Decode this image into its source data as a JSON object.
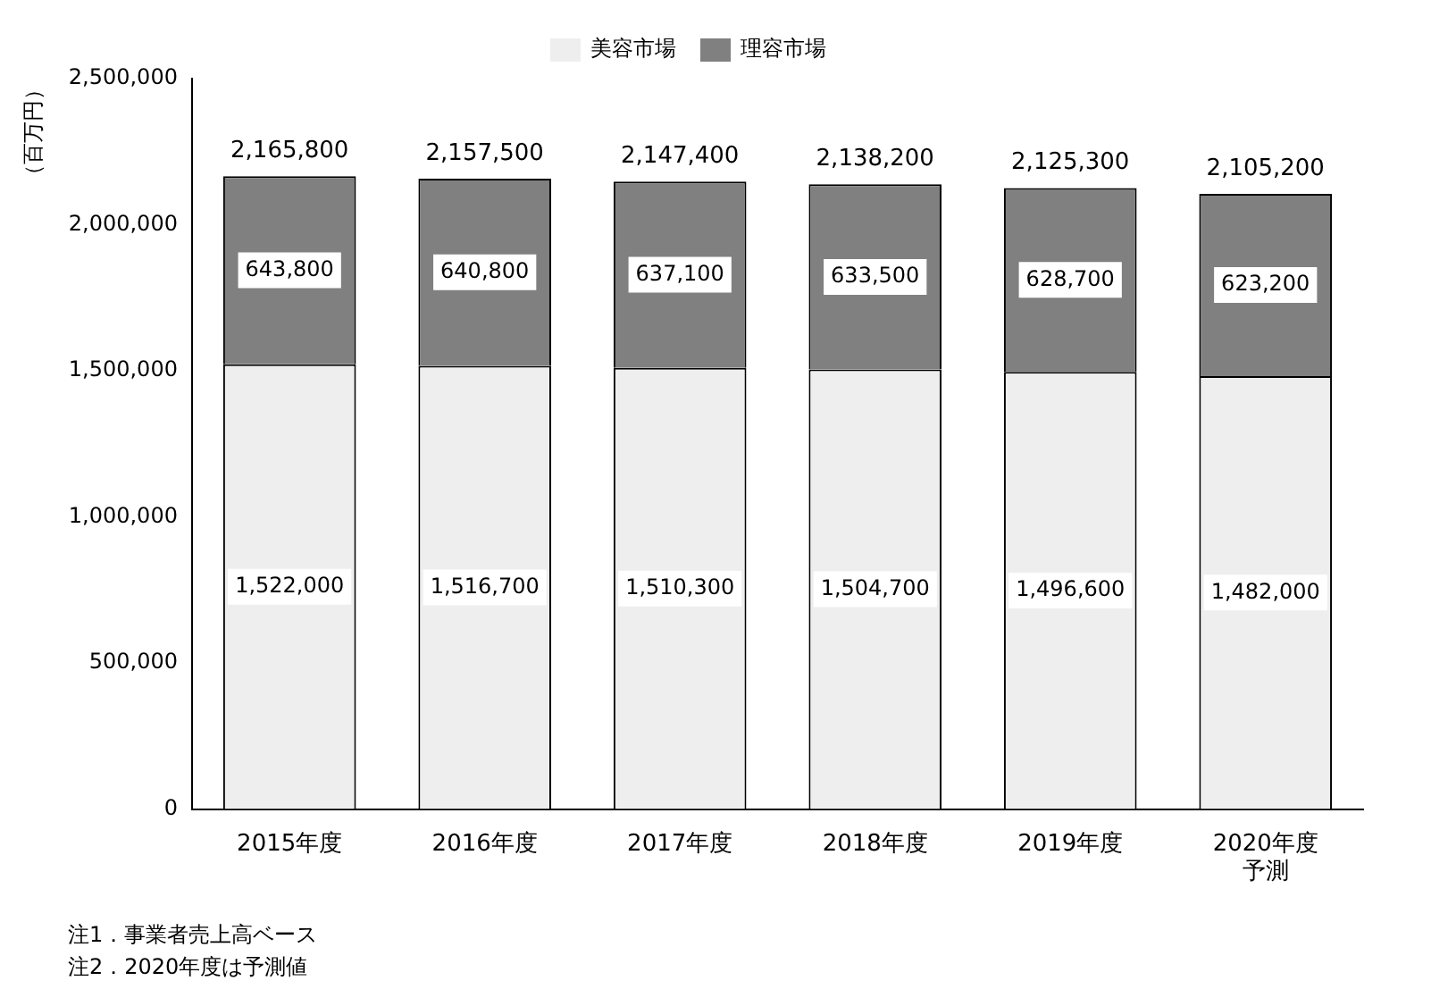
{
  "chart_data": {
    "type": "bar",
    "stacked": true,
    "ylabel": "（百万円）",
    "categories": [
      "2015年度",
      "2016年度",
      "2017年度",
      "2018年度",
      "2019年度",
      "2020年度予測"
    ],
    "series": [
      {
        "name": "美容市場",
        "color": "#eeeeee",
        "values": [
          1522000,
          1516700,
          1510300,
          1504700,
          1496600,
          1482000
        ],
        "value_labels": [
          "1,522,000",
          "1,516,700",
          "1,510,300",
          "1,504,700",
          "1,496,600",
          "1,482,000"
        ]
      },
      {
        "name": "理容市場",
        "color": "#808080",
        "values": [
          643800,
          640800,
          637100,
          633500,
          628700,
          623200
        ],
        "value_labels": [
          "643,800",
          "640,800",
          "637,100",
          "633,500",
          "628,700",
          "623,200"
        ]
      }
    ],
    "totals": [
      "2,165,800",
      "2,157,500",
      "2,147,400",
      "2,138,200",
      "2,125,300",
      "2,105,200"
    ],
    "ylim": [
      0,
      2500000
    ],
    "yticks": [
      {
        "value": 0,
        "label": "0"
      },
      {
        "value": 500000,
        "label": "500,000"
      },
      {
        "value": 1000000,
        "label": "1,000,000"
      },
      {
        "value": 1500000,
        "label": "1,500,000"
      },
      {
        "value": 2000000,
        "label": "2,000,000"
      },
      {
        "value": 2500000,
        "label": "2,500,000"
      }
    ],
    "grid": false,
    "legend": "top",
    "annotations": [
      "注1．事業者売上高ベース",
      "注2．2020年度は予測値"
    ]
  }
}
